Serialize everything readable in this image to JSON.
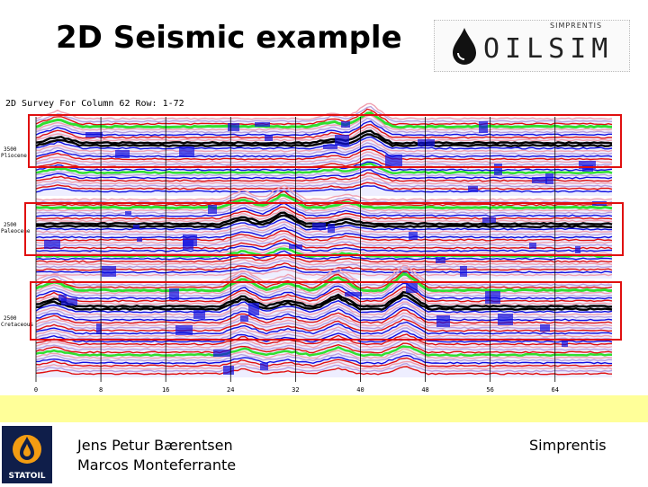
{
  "slide": {
    "title": "2D Seismic example"
  },
  "logo": {
    "word": "OILSIM",
    "sub": "SIMPRENTIS"
  },
  "seismic": {
    "header": "2D Survey For Column 62 Row: 1-72",
    "horizons": [
      {
        "label1": "3500",
        "label2": "Pliocene"
      },
      {
        "label1": "2500",
        "label2": "Paleocene"
      },
      {
        "label1": "2500",
        "label2": "Cretaceous"
      }
    ],
    "x_ticks": [
      "0",
      "8",
      "16",
      "24",
      "32",
      "40",
      "48",
      "56",
      "64"
    ],
    "colors": {
      "red_box": "#e01010",
      "trace_pink": "#f0a0b0",
      "trace_lav": "#b8a0e0",
      "trace_blue": "#1010e0",
      "trace_red": "#e01010",
      "trace_green": "#30e030",
      "trace_black": "#000000"
    }
  },
  "footer": {
    "author1": "Jens Petur Bærentsen",
    "author2": "Marcos Monteferrante",
    "company": "Simprentis",
    "statoil_label": "STATOIL",
    "band_color": "#ffff99"
  }
}
